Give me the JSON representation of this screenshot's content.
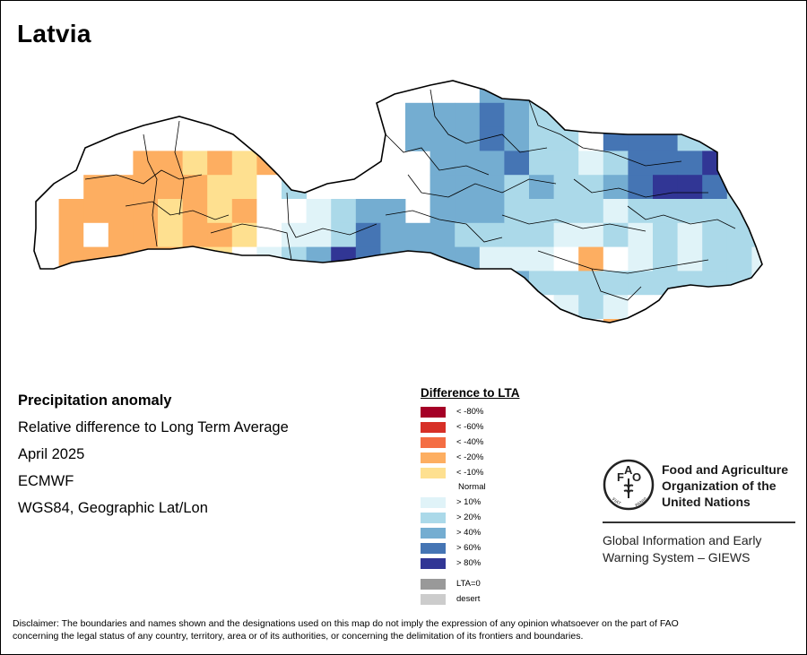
{
  "map": {
    "title": "Latvia",
    "subtitle": "Precipitation anomaly",
    "description": "Relative difference to Long Term Average",
    "period": "April 2025",
    "source": "ECMWF",
    "projection": "WGS84, Geographic Lat/Lon"
  },
  "legend": {
    "title": "Difference to LTA",
    "classes": [
      {
        "label": "< -80%",
        "color": "#a50026"
      },
      {
        "label": "< -60%",
        "color": "#d73027"
      },
      {
        "label": "< -40%",
        "color": "#f46d43"
      },
      {
        "label": "< -20%",
        "color": "#fdae61"
      },
      {
        "label": "< -10%",
        "color": "#fee090"
      },
      {
        "label": "Normal",
        "color": "#ffffff"
      },
      {
        "label": "> 10%",
        "color": "#e0f3f8"
      },
      {
        "label": "> 20%",
        "color": "#abd9e9"
      },
      {
        "label": "> 40%",
        "color": "#74add1"
      },
      {
        "label": "> 60%",
        "color": "#4575b4"
      },
      {
        "label": "> 80%",
        "color": "#313695"
      }
    ],
    "extra": [
      {
        "label": "LTA=0",
        "color": "#999999"
      },
      {
        "label": "desert",
        "color": "#cccccc"
      }
    ]
  },
  "branding": {
    "fao_lines": [
      "Food and Agriculture",
      "Organization of the",
      "United Nations"
    ],
    "logo_letters": "FAO",
    "logo_motto_left": "FIAT",
    "logo_motto_right": "PANIS",
    "giews_lines": [
      "Global Information and Early",
      "Warning System – GIEWS"
    ]
  },
  "disclaimer": [
    "Disclaimer: The boundaries and names shown and the designations used on this map do not imply the expression of any opinion whatsoever on the part of FAO",
    "concerning the legal status of any country, territory, area or of its authorities, or concerning the delimitation of its frontiers and boundaries."
  ]
}
